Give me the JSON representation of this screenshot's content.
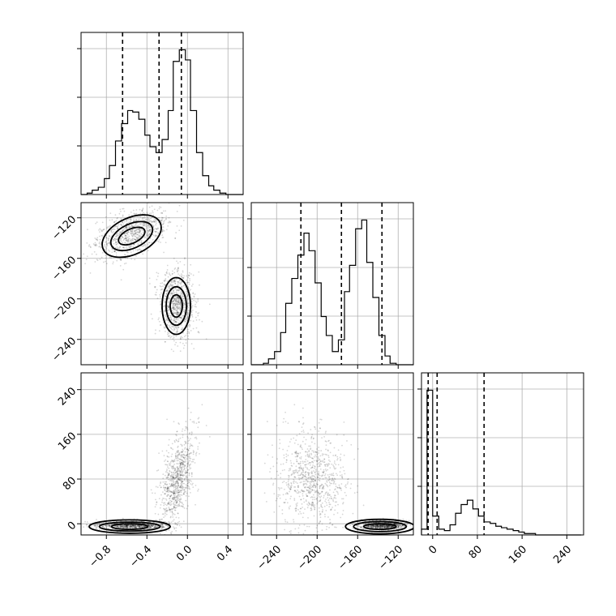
{
  "chart_data": {
    "type": "corner",
    "grid": true,
    "parameters": [
      {
        "range": [
          -1.05,
          0.55
        ],
        "ticks": [
          -0.8,
          -0.4,
          0.0,
          0.4
        ],
        "tick_labels": [
          "−0.8",
          "−0.4",
          "0.0",
          "0.4"
        ],
        "quantiles": [
          -0.64,
          -0.28,
          -0.06
        ]
      },
      {
        "range": [
          -265,
          -105
        ],
        "ticks": [
          -240,
          -200,
          -160,
          -120
        ],
        "tick_labels": [
          "−240",
          "−200",
          "−160",
          "−120"
        ],
        "quantiles": [
          -216,
          -176,
          -136
        ]
      },
      {
        "range": [
          -20,
          270
        ],
        "ticks": [
          0,
          80,
          160,
          240
        ],
        "tick_labels": [
          "0",
          "80",
          "160",
          "240"
        ],
        "quantiles": [
          -8,
          8,
          92
        ]
      }
    ],
    "histograms": [
      {
        "param": 0,
        "bin_edges": [
          -1.05,
          -0.99,
          -0.94,
          -0.88,
          -0.82,
          -0.77,
          -0.71,
          -0.65,
          -0.59,
          -0.54,
          -0.48,
          -0.42,
          -0.37,
          -0.31,
          -0.25,
          -0.19,
          -0.14,
          -0.08,
          -0.02,
          0.03,
          0.09,
          0.15,
          0.21,
          0.26,
          0.32,
          0.38,
          0.43,
          0.49,
          0.55
        ],
        "counts": [
          0,
          1,
          3,
          5,
          11,
          20,
          37,
          49,
          58,
          57,
          52,
          41,
          33,
          29,
          38,
          58,
          92,
          100,
          93,
          58,
          29,
          13,
          6,
          3,
          1,
          0,
          0,
          0
        ]
      },
      {
        "param": 1,
        "bin_edges": [
          -265,
          -259,
          -253,
          -248,
          -242,
          -236,
          -231,
          -225,
          -219,
          -213,
          -208,
          -202,
          -196,
          -191,
          -185,
          -179,
          -173,
          -168,
          -162,
          -156,
          -151,
          -145,
          -139,
          -133,
          -128,
          -122,
          -116,
          -111,
          -105
        ],
        "counts": [
          0,
          0,
          1,
          4,
          9,
          22,
          42,
          59,
          75,
          90,
          78,
          56,
          33,
          20,
          9,
          17,
          50,
          68,
          93,
          99,
          70,
          46,
          20,
          6,
          1,
          0,
          0,
          0
        ]
      },
      {
        "param": 2,
        "bin_edges": [
          -20,
          -10,
          0,
          11,
          21,
          31,
          41,
          51,
          62,
          72,
          82,
          92,
          103,
          113,
          123,
          133,
          144,
          154,
          164,
          174,
          184,
          195,
          205,
          215,
          225,
          236,
          246,
          256,
          266
        ],
        "counts": [
          4,
          100,
          13,
          4,
          3,
          7,
          15,
          21,
          24,
          18,
          13,
          9,
          8,
          6,
          5,
          4,
          3,
          2,
          1,
          1,
          0,
          0,
          0,
          0,
          0,
          0,
          0,
          0
        ]
      }
    ],
    "clusters": [
      {
        "name": "",
        "weight": 0.5,
        "mean": [
          -0.55,
          -135,
          -3
        ],
        "std": [
          0.18,
          12,
          4
        ],
        "corr_01": 0.45,
        "corr_12": 0.0
      },
      {
        "name": "",
        "weight": 0.5,
        "mean": [
          -0.1,
          -205,
          80
        ],
        "std": [
          0.09,
          17,
          45
        ],
        "corr_01": -0.1,
        "corr_12": 0.15,
        "corr_02": 0.55
      }
    ],
    "contours": {
      "p1_vs_p0": [
        {
          "cx": -0.55,
          "cy": -138,
          "rx": 0.31,
          "ry": 18,
          "rot": -25
        },
        {
          "cx": -0.55,
          "cy": -138,
          "rx": 0.22,
          "ry": 12,
          "rot": -25
        },
        {
          "cx": -0.55,
          "cy": -138,
          "rx": 0.14,
          "ry": 7,
          "rot": -25
        },
        {
          "cx": -0.11,
          "cy": -207,
          "rx": 0.14,
          "ry": 28,
          "rot": 0
        },
        {
          "cx": -0.11,
          "cy": -207,
          "rx": 0.1,
          "ry": 19,
          "rot": 0
        },
        {
          "cx": -0.11,
          "cy": -207,
          "rx": 0.06,
          "ry": 11,
          "rot": 0
        }
      ],
      "p2_vs_p0": [
        {
          "cx": -0.57,
          "cy": -5,
          "rx": 0.4,
          "ry": 12,
          "rot": 0
        },
        {
          "cx": -0.57,
          "cy": -5,
          "rx": 0.3,
          "ry": 8,
          "rot": 0
        },
        {
          "cx": -0.57,
          "cy": -5,
          "rx": 0.18,
          "ry": 5,
          "rot": 0
        }
      ],
      "p2_vs_p1": [
        {
          "cx": -138,
          "cy": -5,
          "rx": 34,
          "ry": 13,
          "rot": 0
        },
        {
          "cx": -138,
          "cy": -5,
          "rx": 26,
          "ry": 9,
          "rot": 0
        },
        {
          "cx": -138,
          "cy": -5,
          "rx": 16,
          "ry": 5,
          "rot": 0
        }
      ]
    }
  }
}
